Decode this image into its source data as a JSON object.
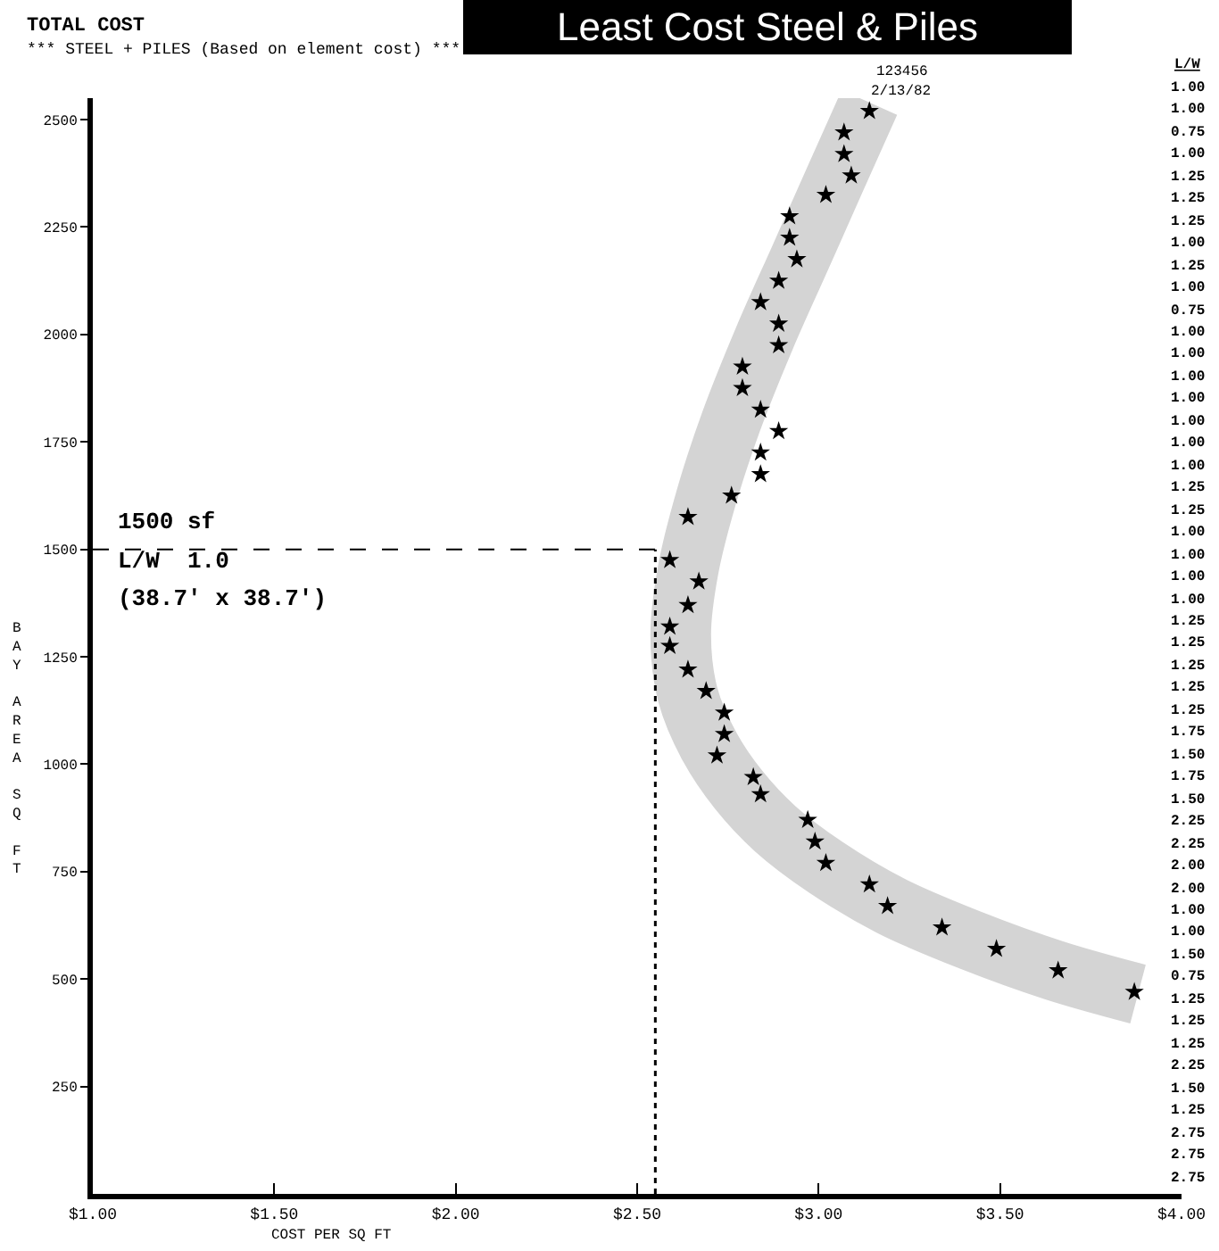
{
  "chart_data": {
    "type": "scatter",
    "title": "Least Cost Steel & Piles",
    "subtitle": "TOTAL COST",
    "xlabel": "COST PER SQ FT",
    "ylabel": "BAY AREA SQ FT",
    "xlim": [
      1,
      4
    ],
    "ylim": [
      0,
      2550
    ],
    "xticks": [
      {
        "value": 1,
        "label": "$1.00"
      },
      {
        "value": 1.5,
        "label": "$1.50"
      },
      {
        "value": 2,
        "label": "$2.00"
      },
      {
        "value": 2.5,
        "label": "$2.50"
      },
      {
        "value": 3,
        "label": "$3.00"
      },
      {
        "value": 3.5,
        "label": "$3.50"
      },
      {
        "value": 4,
        "label": "$4.00"
      }
    ],
    "yticks": [
      250,
      500,
      750,
      1000,
      1250,
      1500,
      1750,
      2000,
      2250,
      2500
    ],
    "series": [
      {
        "type": "line",
        "color": "#d4d4d4",
        "marker": "none",
        "x": [
          3.14,
          3.05,
          2.95,
          2.85,
          2.76,
          2.69,
          2.64,
          2.62,
          2.64,
          2.7,
          2.78,
          2.88,
          3.02,
          3.2,
          3.42,
          3.65,
          3.88
        ],
        "values": [
          2540,
          2370,
          2180,
          1990,
          1800,
          1620,
          1450,
          1300,
          1160,
          1040,
          940,
          850,
          760,
          670,
          590,
          520,
          465
        ]
      },
      {
        "color": "#000000",
        "marker": "star",
        "x": [
          3.14,
          3.07,
          3.07,
          3.09,
          3.02,
          2.92,
          2.92,
          2.94,
          2.89,
          2.84,
          2.89,
          2.89,
          2.79,
          2.79,
          2.84,
          2.89,
          2.84,
          2.84,
          2.76,
          2.64,
          2.59,
          2.67,
          2.64,
          2.59,
          2.59,
          2.64,
          2.69,
          2.74,
          2.74,
          2.72,
          2.82,
          2.84,
          2.97,
          2.99,
          3.02,
          3.14,
          3.19,
          3.34,
          3.49,
          3.66,
          3.87
        ],
        "values": [
          2520,
          2470,
          2420,
          2370,
          2325,
          2275,
          2225,
          2175,
          2125,
          2075,
          2025,
          1975,
          1925,
          1875,
          1825,
          1775,
          1725,
          1675,
          1625,
          1575,
          1475,
          1425,
          1370,
          1320,
          1275,
          1220,
          1170,
          1120,
          1070,
          1020,
          970,
          930,
          870,
          820,
          770,
          720,
          670,
          620,
          570,
          520,
          470
        ]
      }
    ],
    "ref_lines": [
      {
        "axis": "y",
        "value": 1500,
        "line_style": "dashed",
        "color": "#000000"
      },
      {
        "axis": "x",
        "value": 2.55,
        "line_style": "dotted",
        "color": "#000000"
      }
    ],
    "annotations": [
      "1500 sf",
      "L/W  1.0",
      "(38.7' x 38.7')",
      "123456",
      "2/13/82",
      "*** STEEL + PILES (Based on element cost) ***",
      "L/W",
      "1.00",
      "1.00",
      "0.75",
      "1.00",
      "1.25",
      "1.25",
      "1.25",
      "1.00",
      "1.25",
      "1.00",
      "0.75",
      "1.00",
      "1.00",
      "1.00",
      "1.00",
      "1.00",
      "1.00",
      "1.00",
      "1.25",
      "1.25",
      "1.00",
      "1.00",
      "1.00",
      "1.00",
      "1.25",
      "1.25",
      "1.25",
      "1.25",
      "1.25",
      "1.75",
      "1.50",
      "1.75",
      "1.50",
      "2.25",
      "2.25",
      "2.00",
      "2.00",
      "1.00",
      "1.00",
      "1.50",
      "0.75",
      "1.25",
      "1.25",
      "1.25",
      "2.25",
      "1.50",
      "1.25",
      "2.75",
      "2.75",
      "2.75"
    ]
  }
}
